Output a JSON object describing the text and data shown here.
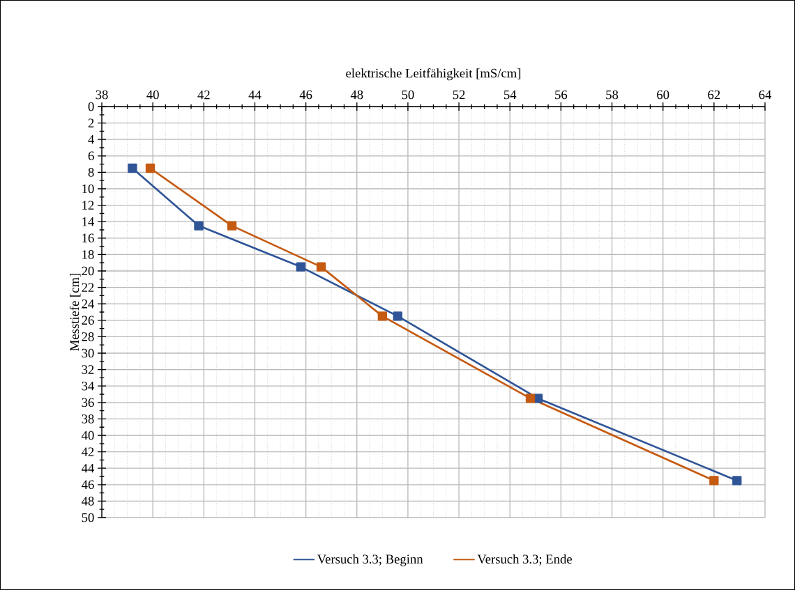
{
  "chart_data": {
    "type": "line",
    "xlabel": "elektrische Leitfähigkeit [mS/cm]",
    "ylabel": "Messtiefe [cm]",
    "xlim": [
      38,
      64
    ],
    "xticks": [
      38,
      40,
      42,
      44,
      46,
      48,
      50,
      52,
      54,
      56,
      58,
      60,
      62,
      64
    ],
    "ylim": [
      50,
      0
    ],
    "yticks": [
      0,
      2,
      4,
      6,
      8,
      10,
      12,
      14,
      16,
      18,
      20,
      22,
      24,
      26,
      28,
      30,
      32,
      34,
      36,
      38,
      40,
      42,
      44,
      46,
      48,
      50
    ],
    "grid": true,
    "legend": "bottom",
    "marker": "square",
    "line_style": "solid",
    "series": [
      {
        "name": "Versuch 3.3; Beginn",
        "color": "#2f5597",
        "x": [
          39.2,
          41.8,
          45.8,
          49.6,
          55.1,
          62.9
        ],
        "values": [
          7.5,
          14.5,
          19.5,
          25.5,
          35.5,
          45.5
        ]
      },
      {
        "name": "Versuch 3.3; Ende",
        "color": "#c55a11",
        "x": [
          39.9,
          43.1,
          46.6,
          49.0,
          54.8,
          62.0
        ],
        "values": [
          7.5,
          14.5,
          19.5,
          25.5,
          35.5,
          45.5
        ]
      }
    ]
  }
}
